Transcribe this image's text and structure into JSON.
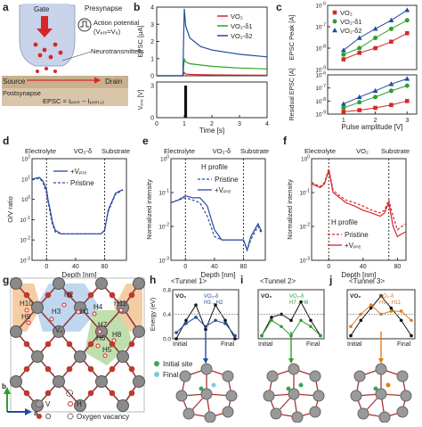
{
  "panels": {
    "a": {
      "letter": "a",
      "gate": "Gate",
      "presynapse": "Presynapse",
      "ap_label": "Action potential",
      "ap_eq": "(Vₚᵣₑ=V₉)",
      "neuro": "Neurotransmitters",
      "source": "Source",
      "drain": "Drain",
      "postsynapse": "Postsynapse",
      "epsc_eq": "EPSC = Iₚₒₛₜ − Iₚₒₛₜ,₀"
    },
    "b": {
      "letter": "b",
      "ylabel_top": "EPSC [μA]",
      "ylabel_bot": "Vₚᵣₑ [V]",
      "xlabel": "Time [s]",
      "legend": [
        "VO₂",
        "VO₂‑δ1",
        "VO₂‑δ2"
      ]
    },
    "c": {
      "letter": "c",
      "ylabel_top": "EPSC Peak [A]",
      "ylabel_bot": "Residual EPSC [A]",
      "xlabel": "Pulse amplitude [V]",
      "legend": [
        "VO₂",
        "VO₂‑δ1",
        "VO₂‑δ2"
      ]
    },
    "d": {
      "letter": "d",
      "h1": "Electrolyte",
      "h2": "VO₂‑δ",
      "h3": "Substrate",
      "ylabel": "O/V ratio",
      "xlabel": "Depth [nm]",
      "legend": [
        "+Vₚᵣₑ",
        "Pristine"
      ]
    },
    "e": {
      "letter": "e",
      "h1": "Electrolyte",
      "h2": "VO₂‑δ",
      "h3": "Substrate",
      "ylabel": "Normalized intensity",
      "xlabel": "Depth [nm]",
      "title": "H profile",
      "legend": [
        "Pristine",
        "+Vₚᵣₑ"
      ]
    },
    "f": {
      "letter": "f",
      "h1": "Electrolyte",
      "h2": "VO₂",
      "h3": "Substrate",
      "ylabel": "Normalized intensity",
      "xlabel": "Depth [nm]",
      "title": "H profile",
      "legend": [
        "Pristine",
        "+Vₚᵣₑ"
      ]
    },
    "g": {
      "letter": "g",
      "sites": [
        "H2",
        "H1",
        "H3",
        "H10",
        "H9",
        "H11",
        "H7",
        "H8",
        "H6",
        "H5",
        "H4"
      ],
      "vo": "Vₒ",
      "axis_b": "b",
      "axis_a": "a",
      "legend": [
        "V",
        "O",
        "H",
        "Oxygen vacancy"
      ]
    },
    "h": {
      "letter": "h",
      "title": "<Tunnel 1>",
      "ylabel": "Energy (eV)",
      "x_init": "Initial",
      "x_final": "Final",
      "tag": "VO₂",
      "path": "VO₂‑δ H3→H2"
    },
    "i": {
      "letter": "i",
      "title": "<Tunnel 2>",
      "x_init": "Initial",
      "x_final": "Final",
      "tag": "VO₂",
      "path": "VO₂‑δ H7→H6"
    },
    "j": {
      "letter": "j",
      "title": "<Tunnel 3>",
      "x_init": "Initial",
      "x_final": "Final",
      "tag": "VO₂",
      "path": "VO₂‑δ H9→H11"
    },
    "sites_legend": [
      "Initial site",
      "Final site"
    ]
  },
  "chart_data": [
    {
      "panel": "b",
      "type": "line",
      "title": "",
      "xlabel": "Time [s]",
      "ylabel": "EPSC [μA]",
      "xlim": [
        0,
        4
      ],
      "ylim": [
        0,
        4
      ],
      "xticks": [
        0,
        1,
        2,
        3,
        4
      ],
      "yticks": [
        0,
        1,
        2,
        3,
        4
      ],
      "series": [
        {
          "name": "VO₂",
          "color": "#d62728",
          "x": [
            0,
            0.95,
            1.0,
            1.05,
            1.2,
            2,
            3,
            4
          ],
          "y": [
            0,
            0,
            0.2,
            0.1,
            0.08,
            0.05,
            0.04,
            0.03
          ]
        },
        {
          "name": "VO₂‑δ1",
          "color": "#2ca02c",
          "x": [
            0,
            0.95,
            1.0,
            1.05,
            1.2,
            2,
            3,
            4
          ],
          "y": [
            0,
            0,
            1.0,
            0.8,
            0.7,
            0.55,
            0.45,
            0.4
          ]
        },
        {
          "name": "VO₂‑δ2",
          "color": "#1f4e9c",
          "x": [
            0,
            0.95,
            1.0,
            1.05,
            1.2,
            1.6,
            2,
            3,
            4
          ],
          "y": [
            0,
            0,
            3.9,
            2.9,
            2.2,
            1.7,
            1.5,
            1.25,
            1.1
          ]
        }
      ],
      "pulse": {
        "ylabel": "Vₚᵣₑ [V]",
        "ylim": [
          0,
          3
        ],
        "yticks": [
          0,
          3
        ],
        "x": [
          1.0,
          1.1
        ],
        "value": 3
      }
    },
    {
      "panel": "c",
      "type": "scatter",
      "title": "",
      "xlabel": "Pulse amplitude [V]",
      "ylabel": "EPSC Peak [A]",
      "xlim": [
        0.5,
        3.3
      ],
      "ylim_top": [
        1e-09,
        1e-06
      ],
      "ylim_bot": [
        1e-09,
        1e-06
      ],
      "scale": "log",
      "xticks": [
        1,
        2,
        3
      ],
      "top": [
        {
          "name": "VO₂",
          "color": "#d62728",
          "marker": "square",
          "x": [
            1,
            1.5,
            2,
            2.5,
            3
          ],
          "y": [
            3e-09,
            6e-09,
            1e-08,
            2e-08,
            5e-08
          ]
        },
        {
          "name": "VO₂‑δ1",
          "color": "#2ca02c",
          "marker": "circle",
          "x": [
            1,
            1.5,
            2,
            2.5,
            3
          ],
          "y": [
            5e-09,
            1e-08,
            3e-08,
            8e-08,
            2e-07
          ]
        },
        {
          "name": "VO₂‑δ2",
          "color": "#1f4e9c",
          "marker": "triangle",
          "x": [
            1,
            1.5,
            2,
            2.5,
            3
          ],
          "y": [
            8e-09,
            3e-08,
            8e-08,
            2e-07,
            6e-07
          ]
        }
      ],
      "bottom": [
        {
          "name": "VO₂",
          "color": "#d62728",
          "marker": "square",
          "x": [
            1,
            1.5,
            2,
            2.5,
            3
          ],
          "y": [
            1.5e-09,
            2e-09,
            3e-09,
            5e-09,
            1e-08
          ]
        },
        {
          "name": "VO₂‑δ1",
          "color": "#2ca02c",
          "marker": "circle",
          "x": [
            1,
            1.5,
            2,
            2.5,
            3
          ],
          "y": [
            3e-09,
            8e-09,
            2e-08,
            6e-08,
            1.5e-07
          ]
        },
        {
          "name": "VO₂‑δ2",
          "color": "#1f4e9c",
          "marker": "triangle",
          "x": [
            1,
            1.5,
            2,
            2.5,
            3
          ],
          "y": [
            6e-09,
            2e-08,
            6e-08,
            2e-07,
            5e-07
          ]
        }
      ]
    },
    {
      "panel": "d",
      "type": "line",
      "title": "",
      "xlabel": "Depth [nm]",
      "ylabel": "O/V ratio",
      "xlim": [
        -20,
        110
      ],
      "ylim": [
        0.001,
        100.0
      ],
      "scale": "log",
      "xticks": [
        0,
        40,
        80
      ],
      "vlines": [
        0,
        80
      ],
      "series": [
        {
          "name": "+Vₚᵣₑ",
          "color": "#2b4aa0",
          "dash": false,
          "x": [
            -20,
            -10,
            -5,
            0,
            2,
            5,
            8,
            12,
            20,
            40,
            60,
            75,
            80,
            85,
            95,
            105
          ],
          "y": [
            10,
            12,
            8,
            3,
            1,
            0.3,
            0.08,
            0.03,
            0.02,
            0.02,
            0.02,
            0.02,
            0.03,
            0.3,
            2,
            3
          ]
        },
        {
          "name": "Pristine",
          "color": "#2b4aa0",
          "dash": true,
          "x": [
            -20,
            -10,
            -5,
            0,
            2,
            5,
            8,
            12,
            20,
            40,
            60,
            75,
            80,
            85,
            95,
            105
          ],
          "y": [
            9,
            11,
            7,
            2,
            0.8,
            0.2,
            0.06,
            0.025,
            0.02,
            0.02,
            0.02,
            0.02,
            0.03,
            0.25,
            1.8,
            2.8
          ]
        }
      ]
    },
    {
      "panel": "e",
      "type": "line",
      "title": "H profile",
      "xlabel": "Depth [nm]",
      "ylabel": "Normalized intensity",
      "xlim": [
        -20,
        110
      ],
      "ylim": [
        0.001,
        1.0
      ],
      "scale": "log",
      "xticks": [
        0,
        40,
        80
      ],
      "vlines": [
        0,
        80
      ],
      "series": [
        {
          "name": "Pristine",
          "color": "#2b4aa0",
          "dash": true,
          "x": [
            -20,
            -10,
            0,
            10,
            20,
            30,
            40,
            50,
            60,
            70,
            80,
            85,
            90,
            100,
            105
          ],
          "y": [
            0.05,
            0.06,
            0.07,
            0.06,
            0.05,
            0.02,
            0.005,
            0.004,
            0.004,
            0.004,
            0.004,
            0.002,
            0.004,
            0.01,
            0.006
          ]
        },
        {
          "name": "+Vₚᵣₑ",
          "color": "#2b4aa0",
          "dash": false,
          "x": [
            -20,
            -10,
            0,
            10,
            20,
            30,
            40,
            50,
            60,
            70,
            80,
            85,
            90,
            100,
            105
          ],
          "y": [
            0.05,
            0.06,
            0.08,
            0.07,
            0.07,
            0.04,
            0.008,
            0.004,
            0.004,
            0.004,
            0.004,
            0.002,
            0.005,
            0.012,
            0.007
          ]
        }
      ]
    },
    {
      "panel": "f",
      "type": "line",
      "title": "H profile",
      "xlabel": "Depth [nm]",
      "ylabel": "Normalized intensity",
      "xlim": [
        -20,
        90
      ],
      "ylim": [
        0.001,
        1.0
      ],
      "scale": "log",
      "xticks": [
        0,
        40,
        80
      ],
      "vlines": [
        0,
        70
      ],
      "series": [
        {
          "name": "Pristine",
          "color": "#d62728",
          "dash": true,
          "x": [
            -20,
            -10,
            -5,
            0,
            5,
            10,
            20,
            30,
            40,
            50,
            60,
            65,
            70,
            75,
            80,
            85,
            90
          ],
          "y": [
            0.2,
            0.15,
            0.2,
            0.5,
            0.12,
            0.09,
            0.06,
            0.05,
            0.04,
            0.03,
            0.025,
            0.03,
            0.06,
            0.02,
            0.008,
            0.01,
            0.012
          ]
        },
        {
          "name": "+Vₚᵣₑ",
          "color": "#d62728",
          "dash": false,
          "x": [
            -20,
            -10,
            -5,
            0,
            5,
            10,
            20,
            30,
            40,
            50,
            60,
            65,
            70,
            75,
            80,
            85,
            90
          ],
          "y": [
            0.18,
            0.14,
            0.18,
            0.45,
            0.1,
            0.08,
            0.05,
            0.04,
            0.03,
            0.025,
            0.02,
            0.025,
            0.05,
            0.01,
            0.005,
            0.006,
            0.007
          ]
        }
      ]
    },
    {
      "panel": "h",
      "type": "line",
      "title": "<Tunnel 1>",
      "ylabel": "Energy (eV)",
      "ylim": [
        0,
        0.8
      ],
      "yticks": [
        0,
        0.4,
        0.8
      ],
      "series": [
        {
          "name": "VO₂",
          "color": "#111",
          "x": [
            0,
            1,
            2,
            3,
            4,
            5,
            6
          ],
          "y": [
            0,
            0.3,
            0.55,
            0.15,
            0.55,
            0.3,
            0
          ]
        },
        {
          "name": "VO₂‑δ",
          "color": "#1f4e9c",
          "x": [
            0,
            1,
            2,
            3,
            4,
            5,
            6
          ],
          "y": [
            0.1,
            0.25,
            0.35,
            0.2,
            0.3,
            0.25,
            0.05
          ]
        }
      ]
    },
    {
      "panel": "i",
      "type": "line",
      "title": "<Tunnel 2>",
      "ylim": [
        0,
        0.8
      ],
      "series": [
        {
          "name": "VO₂",
          "color": "#111",
          "x": [
            0,
            1,
            2,
            3,
            4,
            5,
            6
          ],
          "y": [
            0.05,
            0.35,
            0.4,
            0.3,
            0.6,
            0.3,
            0.05
          ]
        },
        {
          "name": "VO₂‑δ",
          "color": "#2ca02c",
          "x": [
            0,
            1,
            2,
            3,
            4,
            5,
            6
          ],
          "y": [
            0.05,
            0.3,
            0.2,
            0.05,
            0.3,
            0.2,
            0.05
          ]
        }
      ]
    },
    {
      "panel": "j",
      "type": "line",
      "title": "<Tunnel 3>",
      "ylim": [
        0,
        0.8
      ],
      "series": [
        {
          "name": "VO₂",
          "color": "#111",
          "x": [
            0,
            1,
            2,
            3,
            4,
            5,
            6
          ],
          "y": [
            0.05,
            0.3,
            0.5,
            0.7,
            0.5,
            0.3,
            0.05
          ]
        },
        {
          "name": "VO₂‑δ",
          "color": "#e07b1a",
          "x": [
            0,
            1,
            2,
            3,
            4,
            5,
            6
          ],
          "y": [
            0.2,
            0.4,
            0.55,
            0.4,
            0.45,
            0.45,
            0.3
          ]
        }
      ]
    }
  ]
}
